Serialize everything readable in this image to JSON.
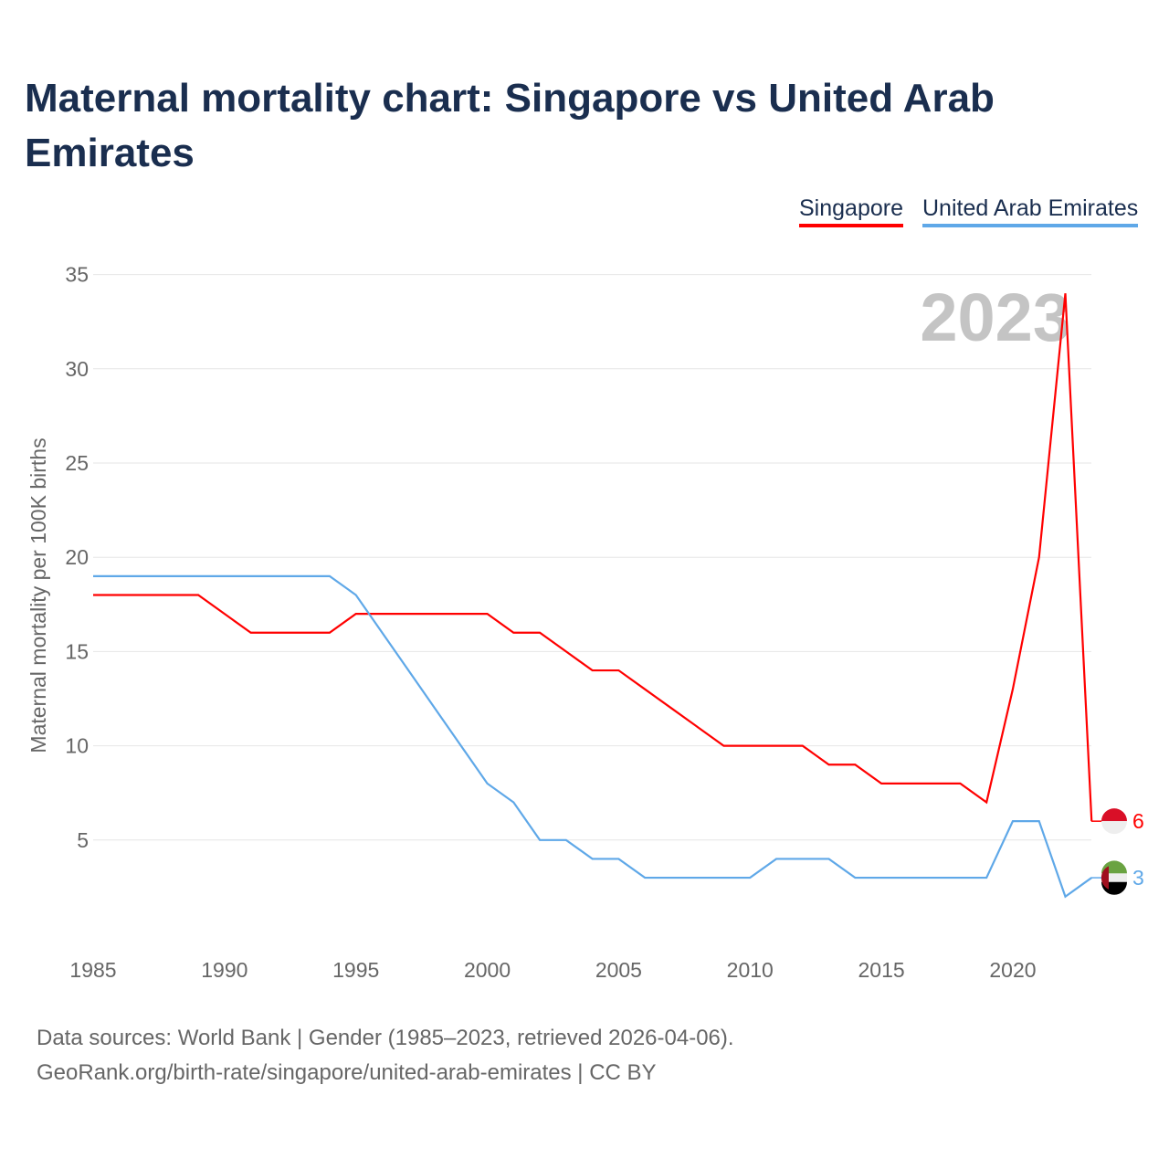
{
  "chart_data": {
    "type": "line",
    "title": "Maternal mortality chart: Singapore vs United Arab Emirates",
    "ylabel": "Maternal mortality per 100K births",
    "xlabel": "",
    "ylim": [
      0,
      35
    ],
    "xlim": [
      1985,
      2023
    ],
    "yticks": [
      5,
      10,
      15,
      20,
      25,
      30,
      35
    ],
    "xticks": [
      1985,
      1990,
      1995,
      2000,
      2005,
      2010,
      2015,
      2020
    ],
    "year_label": "2023",
    "x": [
      1985,
      1986,
      1987,
      1988,
      1989,
      1990,
      1991,
      1992,
      1993,
      1994,
      1995,
      1996,
      1997,
      1998,
      1999,
      2000,
      2001,
      2002,
      2003,
      2004,
      2005,
      2006,
      2007,
      2008,
      2009,
      2010,
      2011,
      2012,
      2013,
      2014,
      2015,
      2016,
      2017,
      2018,
      2019,
      2020,
      2021,
      2022,
      2023
    ],
    "series": [
      {
        "name": "Singapore",
        "color": "#ff0000",
        "end_label": "6",
        "values": [
          18,
          18,
          18,
          18,
          18,
          17,
          16,
          16,
          16,
          16,
          17,
          17,
          17,
          17,
          17,
          17,
          16,
          16,
          15,
          14,
          14,
          13,
          12,
          11,
          10,
          10,
          10,
          10,
          9,
          9,
          8,
          8,
          8,
          8,
          7,
          13,
          20,
          34,
          6
        ]
      },
      {
        "name": "United Arab Emirates",
        "color": "#5fa8e8",
        "end_label": "3",
        "values": [
          19,
          19,
          19,
          19,
          19,
          19,
          19,
          19,
          19,
          19,
          18,
          16,
          14,
          12,
          10,
          8,
          7,
          5,
          5,
          4,
          4,
          3,
          3,
          3,
          3,
          3,
          4,
          4,
          4,
          3,
          3,
          3,
          3,
          3,
          3,
          6,
          6,
          2,
          3
        ]
      }
    ],
    "grid": true,
    "legend": "top-right"
  },
  "footer": {
    "line1": "Data sources: World Bank | Gender (1985–2023, retrieved 2026-04-06).",
    "line2": "GeoRank.org/birth-rate/singapore/united-arab-emirates | CC BY"
  }
}
